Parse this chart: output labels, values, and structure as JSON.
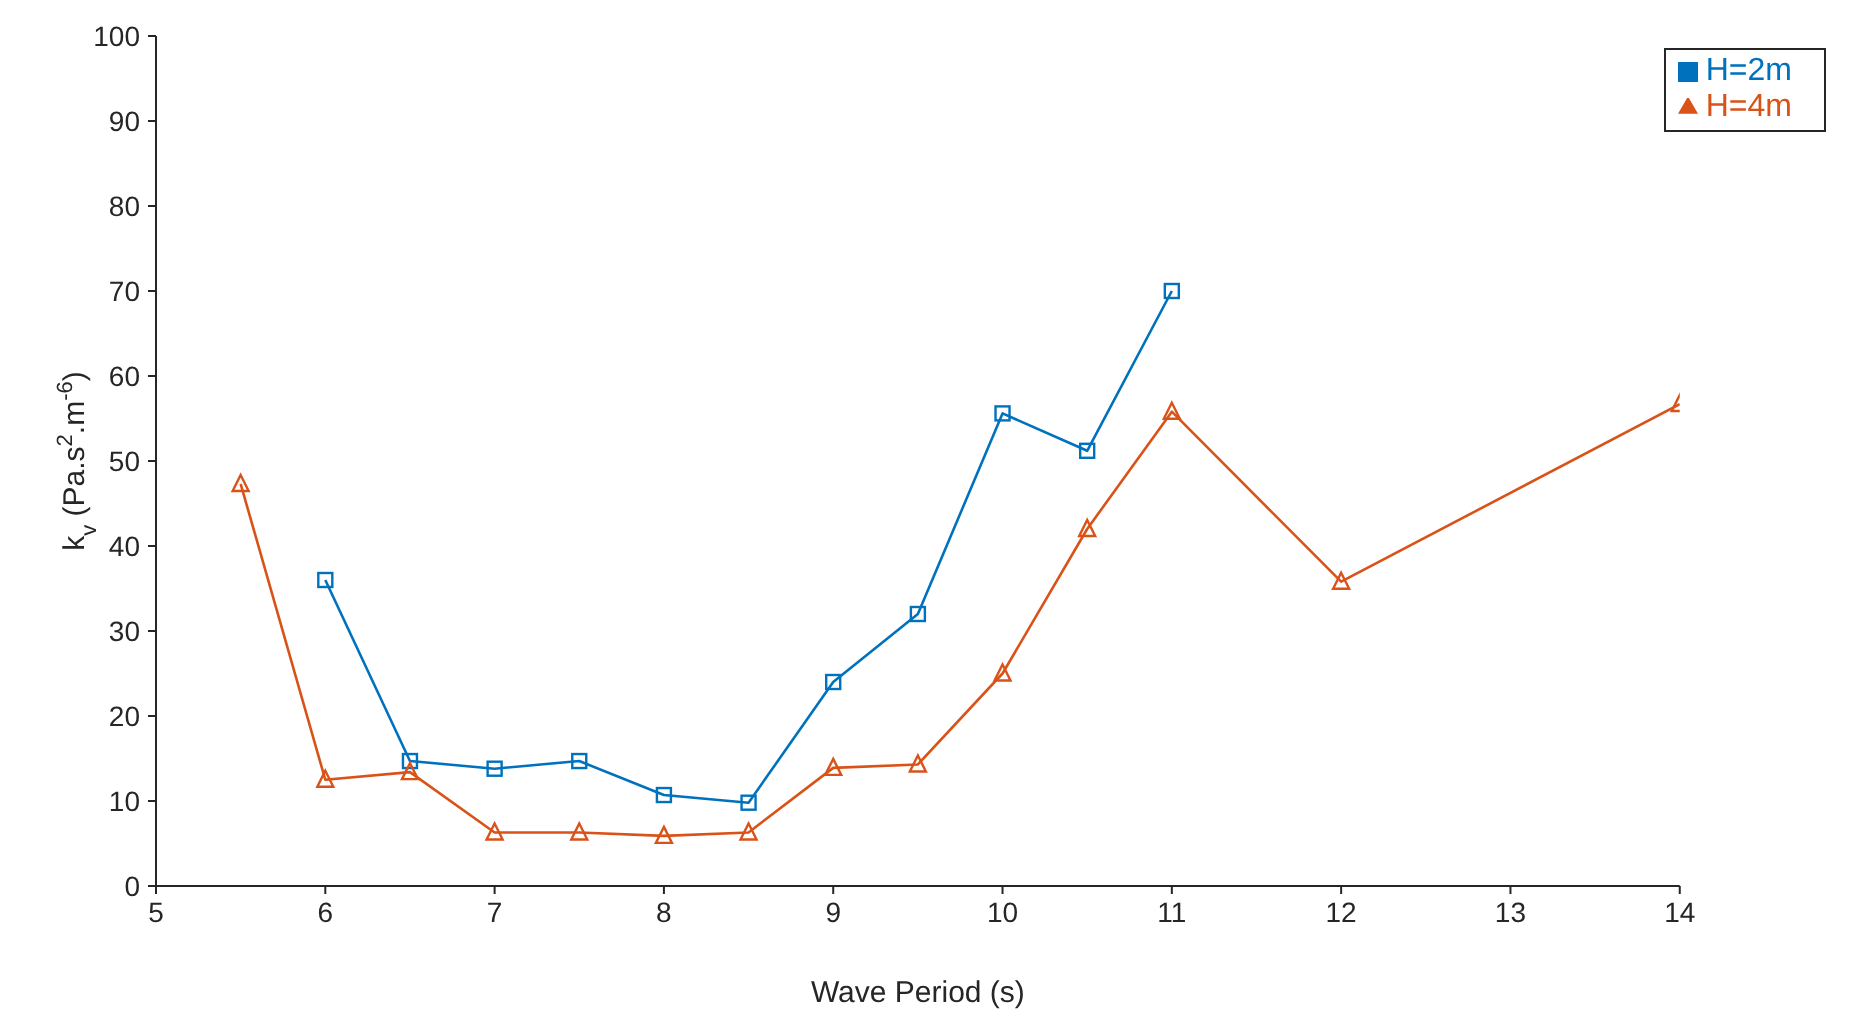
{
  "chart_data": {
    "type": "line",
    "xlabel": "Wave Period (s)",
    "ylabel": "k$_{v}$ (Pa.s$^{2}$.m$^{-6}$)",
    "xlim": [
      5,
      14
    ],
    "xticks": [
      5,
      6,
      7,
      8,
      9,
      10,
      11,
      12,
      13,
      14
    ],
    "ylim": [
      0,
      100
    ],
    "yticks": [
      0,
      10,
      20,
      30,
      40,
      50,
      60,
      70,
      80,
      90,
      100
    ],
    "grid": false,
    "legend": "top right",
    "series": [
      {
        "name": "H=2m",
        "color": "#0072bd",
        "marker": "square",
        "x": [
          6,
          6.5,
          7,
          7.5,
          8,
          8.5,
          9,
          9.5,
          10,
          10.5,
          11
        ],
        "values": [
          36,
          14.7,
          13.8,
          14.7,
          10.7,
          9.8,
          24,
          32,
          55.6,
          51.2,
          70
        ]
      },
      {
        "name": "H=4m",
        "color": "#d95319",
        "marker": "triangle",
        "x": [
          5.5,
          6,
          6.5,
          7,
          7.5,
          8,
          8.5,
          9,
          9.5,
          10,
          10.5,
          11,
          12,
          14
        ],
        "values": [
          47.3,
          12.5,
          13.4,
          6.3,
          6.3,
          5.9,
          6.3,
          13.9,
          14.3,
          25,
          42,
          55.8,
          35.8,
          56.7
        ]
      }
    ]
  }
}
